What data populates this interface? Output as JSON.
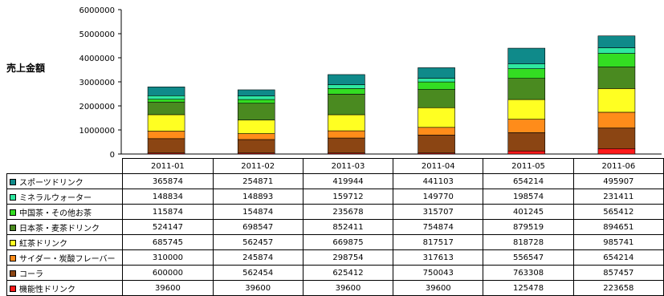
{
  "chart_data": {
    "type": "bar",
    "stacked": true,
    "ylabel": "売上金額",
    "ylim": [
      0,
      6000000
    ],
    "yticks": [
      "6000000",
      "5000000",
      "4000000",
      "3000000",
      "2000000",
      "1000000",
      "0"
    ],
    "categories": [
      "2011-01",
      "2011-02",
      "2011-03",
      "2011-04",
      "2011-05",
      "2011-06"
    ],
    "series": [
      {
        "name": "スポーツドリンク",
        "color": "#0f8a8a",
        "values": [
          365874,
          254871,
          419944,
          441103,
          654214,
          495907
        ]
      },
      {
        "name": "ミネラルウォーター",
        "color": "#2ee8a0",
        "values": [
          148834,
          148893,
          159712,
          149770,
          198574,
          231411
        ]
      },
      {
        "name": "中国茶・その他お茶",
        "color": "#33dd22",
        "values": [
          115874,
          154874,
          235678,
          315707,
          401245,
          565412
        ]
      },
      {
        "name": "日本茶・麦茶ドリンク",
        "color": "#4a8a20",
        "values": [
          524147,
          698547,
          852411,
          754874,
          879519,
          894651
        ]
      },
      {
        "name": "紅茶ドリンク",
        "color": "#ffff22",
        "values": [
          685745,
          562457,
          669875,
          817517,
          818728,
          985741
        ]
      },
      {
        "name": "サイダー・炭酸フレーバー",
        "color": "#ff8c1a",
        "values": [
          310000,
          245874,
          298754,
          317613,
          556547,
          654214
        ]
      },
      {
        "name": "コーラ",
        "color": "#8b4513",
        "values": [
          600000,
          562454,
          625412,
          750043,
          763308,
          857457
        ]
      },
      {
        "name": "機能性ドリンク",
        "color": "#ff1a1a",
        "values": [
          39600,
          39600,
          39600,
          39600,
          125478,
          223658
        ]
      }
    ]
  }
}
